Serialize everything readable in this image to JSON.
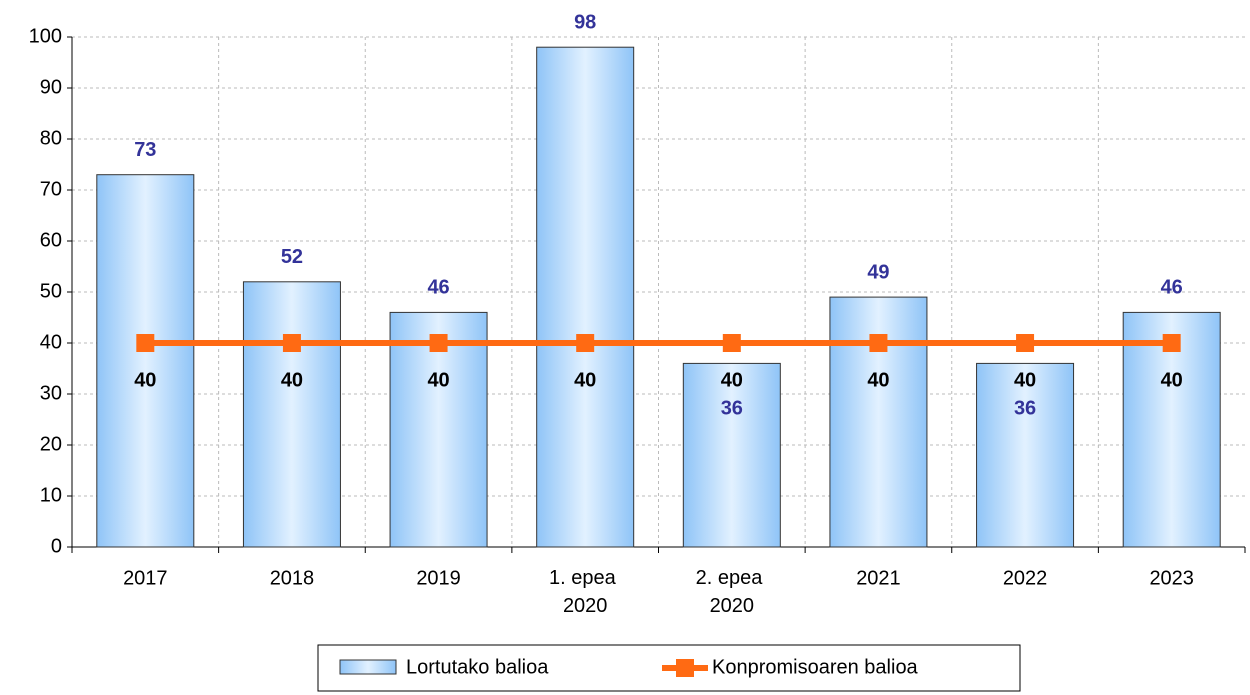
{
  "chart_data": {
    "type": "bar+line",
    "categories": [
      "2017",
      "2018",
      "2019",
      "1. epea 2020",
      "2. epea 2020",
      "2021",
      "2022",
      "2023"
    ],
    "series": [
      {
        "name": "Lortutako balioa",
        "type": "bar",
        "color": "#99ccff",
        "values": [
          73,
          52,
          46,
          98,
          36,
          49,
          36,
          46
        ]
      },
      {
        "name": "Konpromisoaren balioa",
        "type": "line",
        "color": "#ff6a13",
        "values": [
          40,
          40,
          40,
          40,
          40,
          40,
          40,
          40
        ]
      }
    ],
    "ylim": [
      0,
      100
    ],
    "yticks": [
      0,
      10,
      20,
      30,
      40,
      50,
      60,
      70,
      80,
      90,
      100
    ],
    "grid": true,
    "legend": "bottom"
  }
}
